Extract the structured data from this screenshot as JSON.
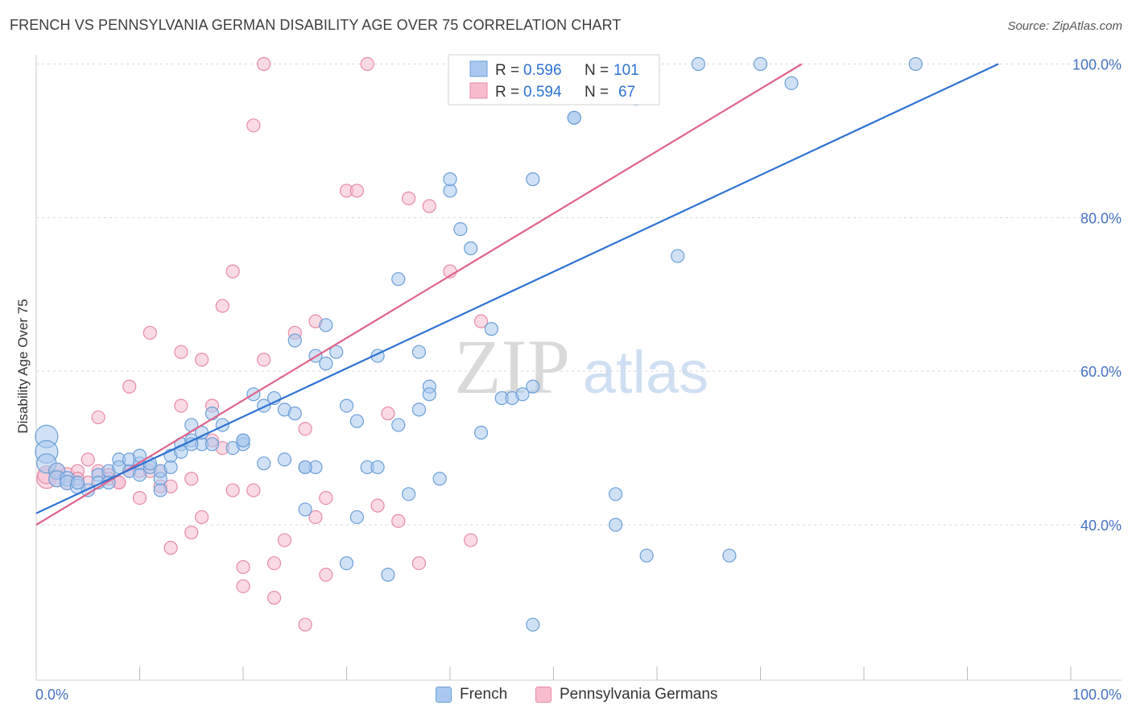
{
  "header": {
    "title": "FRENCH VS PENNSYLVANIA GERMAN DISABILITY AGE OVER 75 CORRELATION CHART",
    "source": "Source: ZipAtlas.com"
  },
  "watermark": {
    "zip": "ZIP",
    "atlas": "atlas"
  },
  "stats_legend": [
    {
      "r_label": "R =",
      "r_value": "0.596",
      "n_label": "N =",
      "n_value": "101"
    },
    {
      "r_label": "R =",
      "r_value": "0.594",
      "n_label": "N =",
      "n_value": "67"
    }
  ],
  "bottom_legend": [
    {
      "label": "French"
    },
    {
      "label": "Pennsylvania Germans"
    }
  ],
  "colors": {
    "french_fill": "#aac8ef",
    "french_stroke": "#6a9fd8",
    "french_line": "#2d72d2",
    "penn_fill": "#f6bccd",
    "penn_stroke": "#e88aa6",
    "penn_line": "#e0628a",
    "tick_text": "#4472c4",
    "grid": "#d8d8d8"
  },
  "chart_data": {
    "type": "scatter",
    "title": "FRENCH VS PENNSYLVANIA GERMAN DISABILITY AGE OVER 75 CORRELATION CHART",
    "xlabel": "",
    "ylabel": "Disability Age Over 75",
    "xlim": [
      0,
      100
    ],
    "ylim": [
      22,
      101.5
    ],
    "x_tick_labels": [
      "0.0%",
      "100.0%"
    ],
    "y_ticks": [
      40,
      60,
      80,
      100
    ],
    "y_tick_labels": [
      "40.0%",
      "60.0%",
      "80.0%",
      "100.0%"
    ],
    "grid": true,
    "legend_position": "top-center",
    "series": [
      {
        "name": "French",
        "r": 0.596,
        "n": 101,
        "trend": {
          "x0": 0,
          "y0": 41.5,
          "x1": 93,
          "y1": 100
        },
        "points": [
          [
            1,
            51.5,
            14
          ],
          [
            1,
            49.5,
            14
          ],
          [
            1,
            48,
            12
          ],
          [
            2,
            47,
            10
          ],
          [
            2,
            46,
            10
          ],
          [
            3,
            46,
            9
          ],
          [
            3,
            45.5,
            9
          ],
          [
            4,
            45,
            9
          ],
          [
            4,
            45.5,
            8
          ],
          [
            5,
            44.5,
            8
          ],
          [
            6,
            46.5,
            8
          ],
          [
            6,
            45.5,
            8
          ],
          [
            7,
            47,
            8
          ],
          [
            7,
            45.5,
            8
          ],
          [
            8,
            48.5,
            8
          ],
          [
            8,
            47.5,
            8
          ],
          [
            9,
            47,
            8
          ],
          [
            9,
            48.5,
            8
          ],
          [
            10,
            48,
            8
          ],
          [
            10,
            46.5,
            8
          ],
          [
            10,
            49,
            8
          ],
          [
            11,
            47.5,
            8
          ],
          [
            11,
            48,
            8
          ],
          [
            12,
            46,
            8
          ],
          [
            12,
            47,
            8
          ],
          [
            12,
            44.5,
            8
          ],
          [
            13,
            47.5,
            8
          ],
          [
            13,
            49,
            8
          ],
          [
            14,
            50.5,
            8
          ],
          [
            14,
            49.5,
            8
          ],
          [
            15,
            53,
            8
          ],
          [
            15,
            51,
            8
          ],
          [
            16,
            50.5,
            8
          ],
          [
            16,
            52,
            8
          ],
          [
            17,
            50.5,
            8
          ],
          [
            17,
            54.5,
            8
          ],
          [
            18,
            53,
            8
          ],
          [
            19,
            50,
            8
          ],
          [
            20,
            50.5,
            8
          ],
          [
            20,
            51,
            8
          ],
          [
            21,
            57,
            8
          ],
          [
            22,
            55.5,
            8
          ],
          [
            22,
            48,
            8
          ],
          [
            23,
            56.5,
            8
          ],
          [
            24,
            55,
            8
          ],
          [
            24,
            48.5,
            8
          ],
          [
            25,
            54.5,
            8
          ],
          [
            25,
            64,
            8
          ],
          [
            26,
            47.5,
            8
          ],
          [
            26,
            42,
            8
          ],
          [
            27,
            47.5,
            8
          ],
          [
            27,
            62,
            8
          ],
          [
            28,
            61,
            8
          ],
          [
            28,
            66,
            8
          ],
          [
            29,
            62.5,
            8
          ],
          [
            30,
            35,
            8
          ],
          [
            30,
            55.5,
            8
          ],
          [
            31,
            41,
            8
          ],
          [
            31,
            53.5,
            8
          ],
          [
            32,
            47.5,
            8
          ],
          [
            33,
            62,
            8
          ],
          [
            34,
            33.5,
            8
          ],
          [
            35,
            72,
            8
          ],
          [
            35,
            53,
            8
          ],
          [
            36,
            44,
            8
          ],
          [
            37,
            62.5,
            8
          ],
          [
            37,
            55,
            8
          ],
          [
            38,
            58,
            8
          ],
          [
            38,
            57,
            8
          ],
          [
            39,
            46,
            8
          ],
          [
            40,
            83.5,
            8
          ],
          [
            40,
            85,
            8
          ],
          [
            41,
            78.5,
            8
          ],
          [
            42,
            76,
            8
          ],
          [
            43,
            52,
            8
          ],
          [
            44,
            65.5,
            8
          ],
          [
            45,
            56.5,
            8
          ],
          [
            46,
            56.5,
            8
          ],
          [
            47,
            57,
            8
          ],
          [
            48,
            58,
            8
          ],
          [
            48,
            85,
            8
          ],
          [
            48,
            27,
            8
          ],
          [
            49,
            100,
            8
          ],
          [
            50,
            100,
            8
          ],
          [
            52,
            93,
            8
          ],
          [
            52,
            93,
            8
          ],
          [
            56,
            40,
            8
          ],
          [
            56,
            44,
            8
          ],
          [
            57,
            100,
            8
          ],
          [
            58,
            95.5,
            8
          ],
          [
            59,
            36,
            8
          ],
          [
            62,
            75,
            8
          ],
          [
            64,
            100,
            8
          ],
          [
            70,
            100,
            8
          ],
          [
            73,
            97.5,
            8
          ],
          [
            85,
            100,
            8
          ],
          [
            67,
            36,
            8
          ],
          [
            20,
            51,
            8
          ],
          [
            26,
            47.5,
            8
          ],
          [
            33,
            47.5,
            8
          ],
          [
            15,
            50.5,
            8
          ]
        ]
      },
      {
        "name": "Pennsylvania Germans",
        "r": 0.594,
        "n": 67,
        "trend": {
          "x0": 0,
          "y0": 40,
          "x1": 74,
          "y1": 100
        },
        "points": [
          [
            1,
            46,
            12
          ],
          [
            1,
            46.5,
            11
          ],
          [
            2,
            47,
            10
          ],
          [
            2,
            46,
            10
          ],
          [
            3,
            46.5,
            9
          ],
          [
            3,
            45.5,
            9
          ],
          [
            4,
            47,
            8
          ],
          [
            4,
            46,
            8
          ],
          [
            5,
            48.5,
            8
          ],
          [
            5,
            45.5,
            8
          ],
          [
            6,
            54,
            8
          ],
          [
            6,
            47,
            8
          ],
          [
            7,
            46.5,
            8
          ],
          [
            7,
            46,
            8
          ],
          [
            8,
            45.5,
            8
          ],
          [
            8,
            45.5,
            8
          ],
          [
            9,
            47,
            8
          ],
          [
            9,
            58,
            8
          ],
          [
            10,
            43.5,
            8
          ],
          [
            10,
            47,
            8
          ],
          [
            11,
            65,
            8
          ],
          [
            11,
            47,
            8
          ],
          [
            12,
            45,
            8
          ],
          [
            12,
            47,
            8
          ],
          [
            13,
            37,
            8
          ],
          [
            13,
            45,
            8
          ],
          [
            14,
            62.5,
            8
          ],
          [
            14,
            55.5,
            8
          ],
          [
            15,
            39,
            8
          ],
          [
            15,
            46,
            8
          ],
          [
            16,
            41,
            8
          ],
          [
            16,
            61.5,
            8
          ],
          [
            17,
            55.5,
            8
          ],
          [
            17,
            51,
            8
          ],
          [
            18,
            68.5,
            8
          ],
          [
            18,
            50,
            8
          ],
          [
            19,
            73,
            8
          ],
          [
            19,
            44.5,
            8
          ],
          [
            20,
            32,
            8
          ],
          [
            20,
            34.5,
            8
          ],
          [
            21,
            44.5,
            8
          ],
          [
            21,
            92,
            8
          ],
          [
            22,
            61.5,
            8
          ],
          [
            22,
            100,
            8
          ],
          [
            23,
            30.5,
            8
          ],
          [
            23,
            35,
            8
          ],
          [
            24,
            38,
            8
          ],
          [
            25,
            65,
            8
          ],
          [
            26,
            27,
            8
          ],
          [
            26,
            52.5,
            8
          ],
          [
            27,
            41,
            8
          ],
          [
            27,
            66.5,
            8
          ],
          [
            28,
            43.5,
            8
          ],
          [
            28,
            33.5,
            8
          ],
          [
            30,
            83.5,
            8
          ],
          [
            31,
            83.5,
            8
          ],
          [
            32,
            100,
            8
          ],
          [
            33,
            42.5,
            8
          ],
          [
            34,
            54.5,
            8
          ],
          [
            35,
            40.5,
            8
          ],
          [
            36,
            82.5,
            8
          ],
          [
            37,
            35,
            8
          ],
          [
            38,
            81.5,
            8
          ],
          [
            40,
            73,
            8
          ],
          [
            42,
            38,
            8
          ],
          [
            43,
            66.5,
            8
          ],
          [
            54,
            100,
            8
          ]
        ]
      }
    ]
  }
}
